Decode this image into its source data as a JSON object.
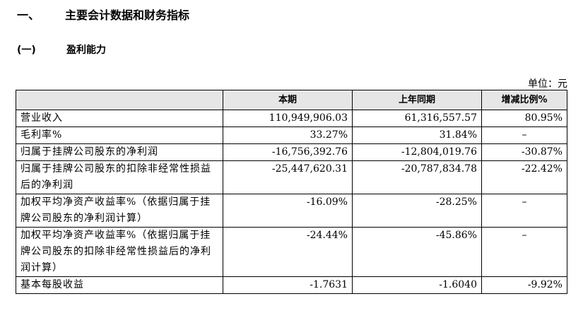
{
  "section": {
    "number": "一、",
    "title": "主要会计数据和财务指标"
  },
  "subsection": {
    "number": "(一)",
    "title": "盈利能力"
  },
  "unit_label": "单位：元",
  "table": {
    "headers": [
      "",
      "本期",
      "上年同期",
      "增减比例%"
    ],
    "rows": [
      {
        "label": "营业收入",
        "current": "110,949,906.03",
        "previous": "61,316,557.57",
        "change": "80.95%"
      },
      {
        "label": "毛利率%",
        "current": "33.27%",
        "previous": "31.84%",
        "change": "–"
      },
      {
        "label": "归属于挂牌公司股东的净利润",
        "current": "-16,756,392.76",
        "previous": "-12,804,019.76",
        "change": "-30.87%"
      },
      {
        "label": "归属于挂牌公司股东的扣除非经常性损益后的净利润",
        "current": "-25,447,620.31",
        "previous": "-20,787,834.78",
        "change": "-22.42%"
      },
      {
        "label": "加权平均净资产收益率%（依据归属于挂牌公司股东的净利润计算）",
        "current": "-16.09%",
        "previous": "-28.25%",
        "change": "–"
      },
      {
        "label": "加权平均净资产收益率%（依据归属于挂牌公司股东的扣除非经常性损益后的净利润计算）",
        "current": "-24.44%",
        "previous": "-45.86%",
        "change": "–"
      },
      {
        "label": "基本每股收益",
        "current": "-1.7631",
        "previous": "-1.6040",
        "change": "-9.92%"
      }
    ]
  }
}
